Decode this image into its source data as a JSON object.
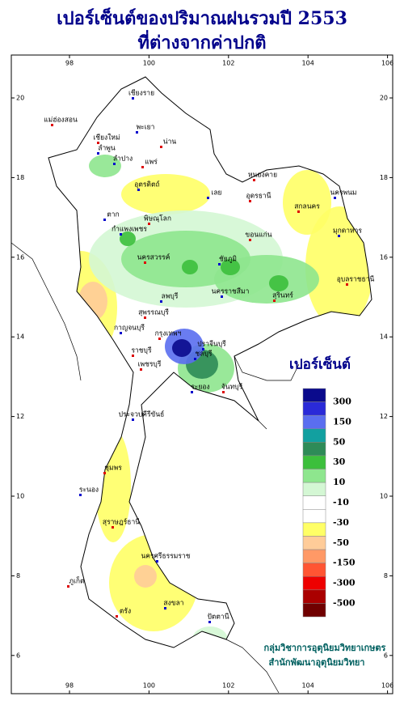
{
  "header": {
    "title": "เปอร์เซ็นต์ของปริมาณฝนรวมปี 2553",
    "subtitle": "ที่ต่างจากค่าปกติ"
  },
  "map": {
    "xticks": [
      98,
      100,
      102,
      104,
      106
    ],
    "yticks": [
      6,
      8,
      10,
      12,
      14,
      16,
      18,
      20
    ],
    "provinces": [
      "เชียงราย",
      "แม่ฮ่องสอน",
      "พะเยา",
      "เชียงใหม่",
      "ลำพูน",
      "น่าน",
      "ลำปาง",
      "แพร่",
      "อุตรดิตถ์",
      "หนองคาย",
      "เลย",
      "อุดรธานี",
      "นครพนม",
      "สกลนคร",
      "ตาก",
      "พิษณุโลก",
      "กำแพงเพชร",
      "ขอนแก่น",
      "มุกดาหาร",
      "นครสวรรค์",
      "ชัยภูมิ",
      "อุบลราชธานี",
      "นครราชสีมา",
      "สุรินทร์",
      "ลพบุรี",
      "สุพรรณบุรี",
      "กาญจนบุรี",
      "กรุงเทพฯ",
      "ปราจีนบุรี",
      "ราชบุรี",
      "ชลบุรี",
      "เพชรบุรี",
      "ระยอง",
      "จันทบุรี",
      "ประจวบคีรีขันธ์",
      "ชุมพร",
      "ระนอง",
      "สุราษฎร์ธานี",
      "นครศรีธรรมราช",
      "ภูเก็ต",
      "สงขลา",
      "ตรัง",
      "ปัตตานี"
    ]
  },
  "legend": {
    "title": "เปอร์เซ็นต์",
    "colors": [
      "#0a0a8c",
      "#2a2ad8",
      "#5a6ef0",
      "#12a0a0",
      "#2e8b57",
      "#3cbf3c",
      "#8ee68e",
      "#d4f7d4",
      "#ffffff",
      "#ffffff",
      "#ffff66",
      "#ffcc99",
      "#ff9966",
      "#ff5533",
      "#ee0000",
      "#aa0000",
      "#700000"
    ],
    "labels": [
      "300",
      "150",
      "50",
      "30",
      "10",
      "-10",
      "-30",
      "-50",
      "-150",
      "-300",
      "-500"
    ]
  },
  "footer": {
    "line1": "กลุ่มวิชาการอุตุนิยมวิทยาเกษตร",
    "line2": "สำนักพัฒนาอุตุนิยมวิทยา"
  }
}
